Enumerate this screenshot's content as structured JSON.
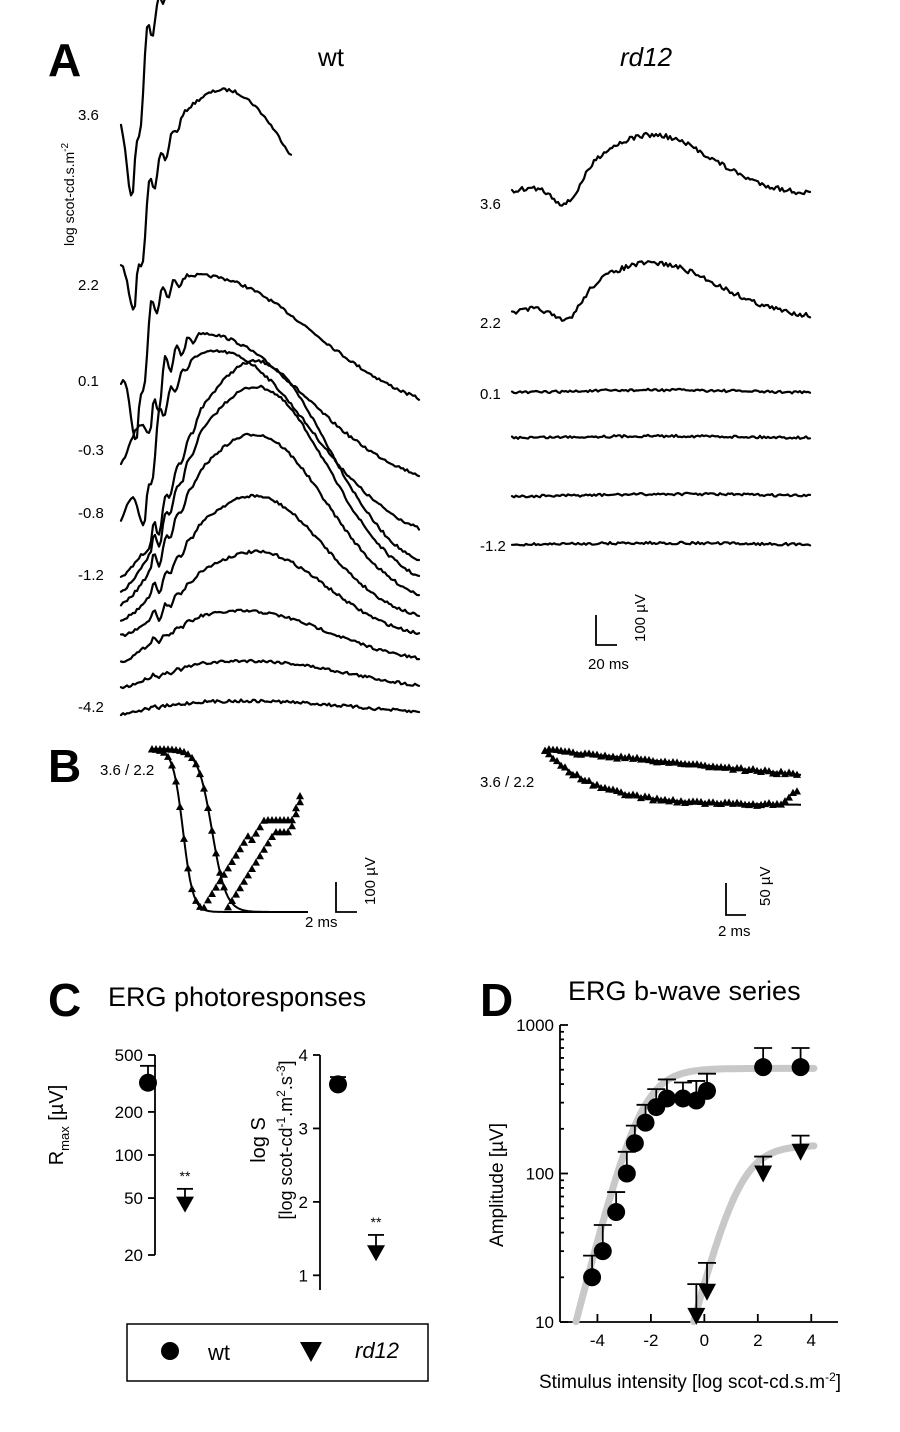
{
  "panels": {
    "A": {
      "letter": "A",
      "wt_label": "wt",
      "rd12_label": "rd12",
      "unit_label": "log scot-cd.s.m",
      "unit_sup": "-2",
      "wt_intensity_labels": [
        "3.6",
        "2.2",
        "0.1",
        "-0.3",
        "-0.8",
        "-1.2",
        "-4.2"
      ],
      "rd12_intensity_labels": [
        "3.6",
        "2.2",
        "0.1",
        "-1.2"
      ],
      "scalebar": {
        "voltage": "100 µV",
        "time": "20 ms"
      }
    },
    "B": {
      "letter": "B",
      "wt_label": "3.6 / 2.2",
      "rd12_label": "3.6 / 2.2",
      "wt_scalebar": {
        "voltage": "100 µV",
        "time": "2 ms"
      },
      "rd12_scalebar": {
        "voltage": "50 µV",
        "time": "2 ms"
      }
    },
    "C": {
      "letter": "C",
      "title": "ERG photoresponses"
    },
    "D": {
      "letter": "D",
      "title": "ERG b-wave series"
    }
  },
  "legend": {
    "wt": "wt",
    "rd12": "rd12"
  },
  "chart_data": [
    {
      "id": "C-left",
      "type": "scatter",
      "ylabel": "R",
      "ylabel_sub": "max",
      "ylabel_suffix": " [µV]",
      "yscale": "log",
      "ylim": [
        20,
        500
      ],
      "yticks": [
        20,
        50,
        100,
        200,
        500
      ],
      "series": [
        {
          "name": "wt",
          "marker": "circle",
          "y": 320,
          "err_top": 420
        },
        {
          "name": "rd12",
          "marker": "triangle-down",
          "y": 45,
          "err_top": 58,
          "annotation": "**"
        }
      ]
    },
    {
      "id": "C-right",
      "type": "scatter",
      "ylabel": "log S",
      "ylabel2": "[log scot-cd",
      "ylabel2_rest": ".m",
      "ylabel2_tail": ".s",
      "ylabel2_sup1": "-1",
      "ylabel2_sup2": "2",
      "ylabel2_sup3": "-3",
      "ylabel2_end": "]",
      "yscale": "linear",
      "ylim": [
        0.8,
        4
      ],
      "yticks": [
        1,
        2,
        3,
        4
      ],
      "series": [
        {
          "name": "wt",
          "marker": "circle",
          "y": 3.6,
          "err_top": 3.7
        },
        {
          "name": "rd12",
          "marker": "triangle-down",
          "y": 1.3,
          "err_top": 1.55,
          "annotation": "**"
        }
      ]
    },
    {
      "id": "D",
      "type": "scatter",
      "title": "ERG b-wave series",
      "xlabel": "Stimulus intensity [log scot-cd.s.m",
      "xlabel_sup": "-2",
      "xlabel_end": "]",
      "ylabel": "Amplitude [µV]",
      "xlim": [
        -5.4,
        5
      ],
      "xticks": [
        -4,
        -2,
        0,
        2,
        4
      ],
      "yscale": "log",
      "ylim": [
        10,
        1000
      ],
      "yticks": [
        10,
        100,
        1000
      ],
      "series": [
        {
          "name": "wt",
          "marker": "circle",
          "x": [
            -4.2,
            -3.8,
            -3.3,
            -2.9,
            -2.6,
            -2.2,
            -1.8,
            -1.4,
            -0.8,
            -0.3,
            0.1,
            2.2,
            3.6
          ],
          "y": [
            20,
            30,
            55,
            100,
            160,
            220,
            280,
            320,
            320,
            310,
            360,
            520,
            520
          ],
          "err_top": [
            28,
            45,
            75,
            140,
            210,
            290,
            370,
            430,
            410,
            420,
            470,
            700,
            700
          ],
          "fit": {
            "vmax": 510,
            "k": 0.0042,
            "n": 0.7
          }
        },
        {
          "name": "rd12",
          "marker": "triangle-down",
          "x": [
            -0.3,
            0.1,
            2.2,
            3.6
          ],
          "y": [
            11,
            16,
            100,
            140
          ],
          "err_top": [
            18,
            25,
            130,
            180
          ],
          "fit": {
            "vmax": 155,
            "k": 18,
            "n": 0.7
          }
        }
      ]
    }
  ]
}
